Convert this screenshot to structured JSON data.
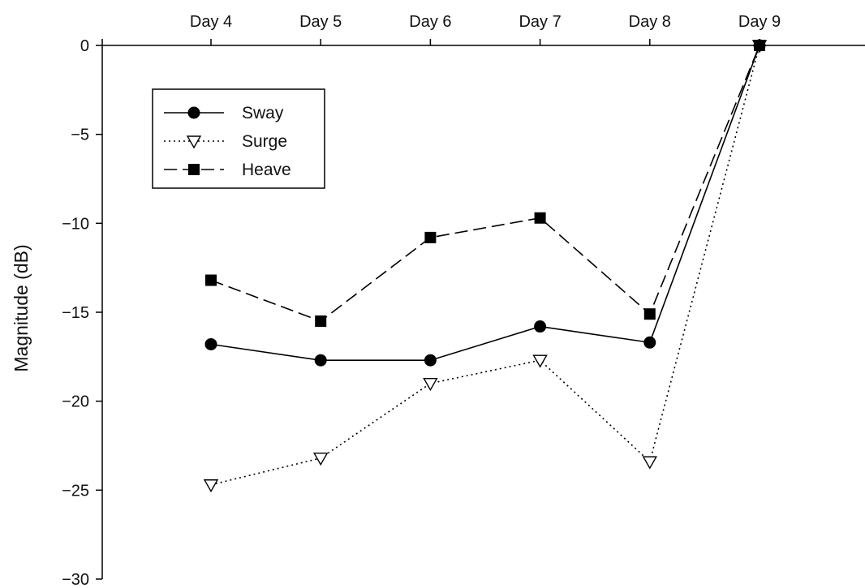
{
  "chart_data": {
    "type": "line",
    "title": "",
    "xlabel": "",
    "ylabel": "Magnitude (dB)",
    "categories": [
      "Day 4",
      "Day 5",
      "Day 6",
      "Day 7",
      "Day 8",
      "Day 9"
    ],
    "x_axis_position": "top",
    "ylim": [
      -30,
      0
    ],
    "yticks": [
      0,
      -5,
      -10,
      -15,
      -20,
      -25,
      -30
    ],
    "grid": false,
    "legend_position": "top-left",
    "series": [
      {
        "name": "Sway",
        "values": [
          -16.8,
          -17.7,
          -17.7,
          -15.8,
          -16.7,
          0
        ],
        "line_style": "solid",
        "marker": "filled-circle",
        "color": "#000000"
      },
      {
        "name": "Surge",
        "values": [
          -24.7,
          -23.2,
          -19.0,
          -17.7,
          -23.4,
          0
        ],
        "line_style": "dotted",
        "marker": "open-triangle-down",
        "color": "#000000"
      },
      {
        "name": "Heave",
        "values": [
          -13.2,
          -15.5,
          -10.8,
          -9.7,
          -15.1,
          0
        ],
        "line_style": "dashed",
        "marker": "filled-square",
        "color": "#000000"
      }
    ]
  }
}
